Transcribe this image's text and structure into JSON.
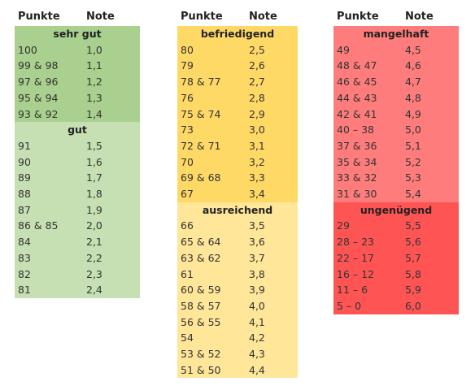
{
  "columns": [
    {
      "header": [
        "Punkte",
        "Note"
      ],
      "groups": [
        {
          "title": "sehr gut",
          "rows": [
            [
              "100",
              "1,0"
            ],
            [
              "99 & 98",
              "1,1"
            ],
            [
              "97 & 96",
              "1,2"
            ],
            [
              "95 & 94",
              "1,3"
            ],
            [
              "93 & 92",
              "1,4"
            ]
          ]
        },
        {
          "title": "gut",
          "rows": [
            [
              "91",
              "1,5"
            ],
            [
              "90",
              "1,6"
            ],
            [
              "89",
              "1,7"
            ],
            [
              "88",
              "1,8"
            ],
            [
              "87",
              "1,9"
            ],
            [
              "86 & 85",
              "2,0"
            ],
            [
              "84",
              "2,1"
            ],
            [
              "83",
              "2,2"
            ],
            [
              "82",
              "2,3"
            ],
            [
              "81",
              "2,4"
            ]
          ]
        }
      ]
    },
    {
      "header": [
        "Punkte",
        "Note"
      ],
      "groups": [
        {
          "title": "befriedigend",
          "rows": [
            [
              "80",
              "2,5"
            ],
            [
              "79",
              "2,6"
            ],
            [
              "78 & 77",
              "2,7"
            ],
            [
              "76",
              "2,8"
            ],
            [
              "75 & 74",
              "2,9"
            ],
            [
              "73",
              "3,0"
            ],
            [
              "72 & 71",
              "3,1"
            ],
            [
              "70",
              "3,2"
            ],
            [
              "69 & 68",
              "3,3"
            ],
            [
              "67",
              "3,4"
            ]
          ]
        },
        {
          "title": "ausreichend",
          "rows": [
            [
              "66",
              "3,5"
            ],
            [
              "65 & 64",
              "3,6"
            ],
            [
              "63 & 62",
              "3,7"
            ],
            [
              "61",
              "3,8"
            ],
            [
              "60 & 59",
              "3,9"
            ],
            [
              "58 & 57",
              "4,0"
            ],
            [
              "56 & 55",
              "4,1"
            ],
            [
              "54",
              "4,2"
            ],
            [
              "53 & 52",
              "4,3"
            ],
            [
              "51 & 50",
              "4,4"
            ]
          ]
        }
      ]
    },
    {
      "header": [
        "Punkte",
        "Note"
      ],
      "groups": [
        {
          "title": "mangelhaft",
          "rows": [
            [
              "49",
              "4,5"
            ],
            [
              "48 & 47",
              "4,6"
            ],
            [
              "46 & 45",
              "4,7"
            ],
            [
              "44 & 43",
              "4,8"
            ],
            [
              "42 & 41",
              "4,9"
            ],
            [
              "40 – 38",
              "5,0"
            ],
            [
              "37 & 36",
              "5,1"
            ],
            [
              "35 & 34",
              "5,2"
            ],
            [
              "33 & 32",
              "5,3"
            ],
            [
              "31 & 30",
              "5,4"
            ]
          ]
        },
        {
          "title": "ungenügend",
          "rows": [
            [
              "29",
              "5,5"
            ],
            [
              "28 – 23",
              "5,6"
            ],
            [
              "22 – 17",
              "5,7"
            ],
            [
              "16 – 12",
              "5,8"
            ],
            [
              "11 – 6",
              "5,9"
            ],
            [
              "5 – 0",
              "6,0"
            ]
          ]
        }
      ]
    }
  ]
}
